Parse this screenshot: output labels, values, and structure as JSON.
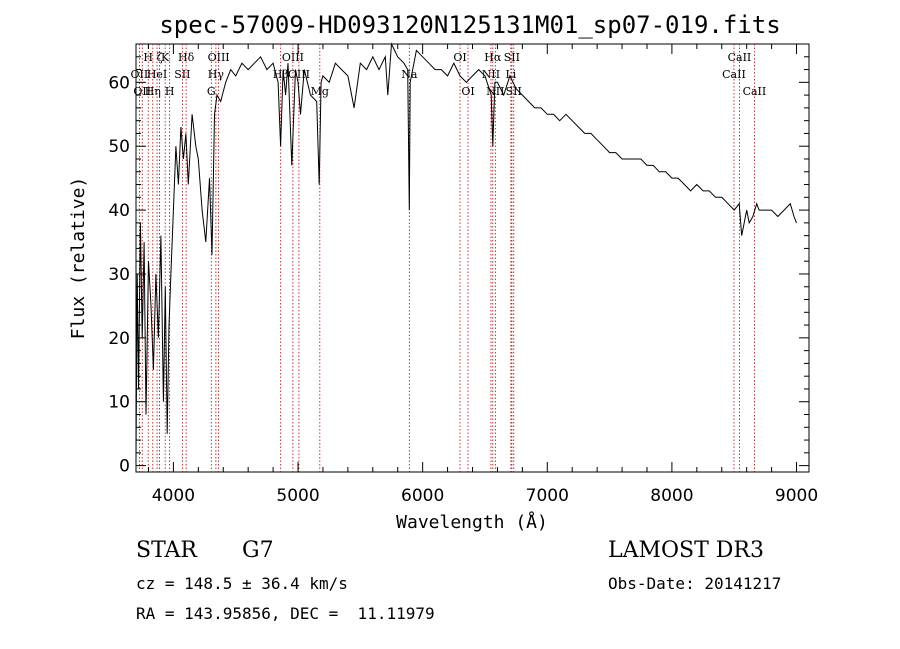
{
  "chart_data": {
    "type": "line",
    "title": "spec-57009-HD093120N125131M01_sp07-019.fits",
    "xlabel": "Wavelength (Å)",
    "ylabel": "Flux (relative)",
    "xlim": [
      3700,
      9100
    ],
    "ylim": [
      -1,
      66
    ],
    "xticks": [
      4000,
      5000,
      6000,
      7000,
      8000,
      9000
    ],
    "yticks": [
      0,
      10,
      20,
      30,
      40,
      50,
      60
    ],
    "grid": false,
    "series": [
      {
        "x": [
          3700,
          3710,
          3720,
          3735,
          3750,
          3765,
          3780,
          3800,
          3820,
          3840,
          3860,
          3880,
          3900,
          3920,
          3935,
          3950,
          3965,
          3980,
          4000,
          4020,
          4040,
          4060,
          4080,
          4100,
          4120,
          4150,
          4180,
          4200,
          4230,
          4260,
          4290,
          4310,
          4330,
          4350,
          4380,
          4420,
          4460,
          4500,
          4550,
          4600,
          4650,
          4700,
          4750,
          4800,
          4840,
          4860,
          4880,
          4900,
          4920,
          4950,
          4980,
          5000,
          5020,
          5050,
          5100,
          5150,
          5170,
          5185,
          5200,
          5250,
          5300,
          5350,
          5400,
          5450,
          5500,
          5550,
          5600,
          5650,
          5700,
          5720,
          5750,
          5800,
          5850,
          5880,
          5893,
          5900,
          5950,
          6000,
          6050,
          6100,
          6150,
          6200,
          6250,
          6300,
          6350,
          6400,
          6450,
          6500,
          6550,
          6563,
          6580,
          6600,
          6650,
          6700,
          6750,
          6800,
          6850,
          6900,
          6950,
          7000,
          7050,
          7100,
          7150,
          7200,
          7250,
          7300,
          7350,
          7400,
          7450,
          7500,
          7550,
          7600,
          7650,
          7700,
          7750,
          7800,
          7850,
          7900,
          7950,
          8000,
          8050,
          8100,
          8150,
          8200,
          8250,
          8300,
          8350,
          8400,
          8450,
          8500,
          8540,
          8560,
          8600,
          8620,
          8650,
          8680,
          8700,
          8750,
          8800,
          8850,
          8900,
          8950,
          8980,
          9000
        ],
        "y": [
          1,
          30,
          12,
          38,
          20,
          35,
          8,
          32,
          25,
          15,
          30,
          20,
          36,
          10,
          28,
          5,
          22,
          30,
          40,
          50,
          44,
          53,
          48,
          52,
          44,
          55,
          50,
          48,
          40,
          35,
          45,
          33,
          55,
          58,
          57,
          60,
          62,
          61,
          63,
          62,
          63,
          64,
          62,
          63,
          60,
          50,
          62,
          58,
          63,
          47,
          62,
          60,
          55,
          62,
          58,
          57,
          44,
          60,
          61,
          60,
          63,
          62,
          61,
          56,
          63,
          62,
          64,
          62,
          64,
          58,
          66,
          64,
          63,
          62,
          40,
          60,
          65,
          64,
          63,
          62,
          62,
          61,
          63,
          61,
          60,
          61,
          62,
          61,
          58,
          50,
          60,
          60,
          58,
          61,
          59,
          58,
          57,
          56,
          56,
          55,
          55,
          54,
          55,
          54,
          53,
          52,
          52,
          51,
          50,
          49,
          49,
          48,
          48,
          48,
          48,
          47,
          47,
          46,
          46,
          45,
          45,
          44,
          43,
          44,
          43,
          43,
          42,
          42,
          41,
          40,
          41,
          36,
          40,
          38,
          39,
          41,
          40,
          40,
          40,
          39,
          40,
          41,
          39,
          38
        ]
      }
    ],
    "lines": [
      {
        "x": 3727,
        "label": "OII",
        "row": 2
      },
      {
        "x": 3750,
        "label": "OII",
        "row": 3
      },
      {
        "x": 3798,
        "label": "H",
        "row": 1
      },
      {
        "x": 3835,
        "label": "Hη",
        "row": 3
      },
      {
        "x": 3869,
        "label": "HeI",
        "row": 2
      },
      {
        "x": 3889,
        "label": "ζ",
        "row": 1
      },
      {
        "x": 3934,
        "label": "K",
        "row": 1
      },
      {
        "x": 3970,
        "label": "H",
        "row": 3
      },
      {
        "x": 4072,
        "label": "SII",
        "row": 2
      },
      {
        "x": 4102,
        "label": "Hδ",
        "row": 1
      },
      {
        "x": 4304,
        "label": "G",
        "row": 3
      },
      {
        "x": 4341,
        "label": "Hγ",
        "row": 2
      },
      {
        "x": 4363,
        "label": "OIII",
        "row": 1
      },
      {
        "x": 4861,
        "label": "Hβ",
        "row": 2
      },
      {
        "x": 4959,
        "label": "OIII",
        "row": 1
      },
      {
        "x": 5007,
        "label": "OIII",
        "row": 2
      },
      {
        "x": 5175,
        "label": "Mg",
        "row": 3
      },
      {
        "x": 5893,
        "label": "Na",
        "row": 2
      },
      {
        "x": 6300,
        "label": "OI",
        "row": 1
      },
      {
        "x": 6364,
        "label": "OI",
        "row": 3
      },
      {
        "x": 6548,
        "label": "NII",
        "row": 2
      },
      {
        "x": 6563,
        "label": "Hα",
        "row": 1
      },
      {
        "x": 6583,
        "label": "NII",
        "row": 3
      },
      {
        "x": 6708,
        "label": "Li",
        "row": 2
      },
      {
        "x": 6716,
        "label": "SII",
        "row": 1
      },
      {
        "x": 6731,
        "label": "SII",
        "row": 3
      },
      {
        "x": 8498,
        "label": "CaII",
        "row": 2
      },
      {
        "x": 8542,
        "label": "CaII",
        "row": 1
      },
      {
        "x": 8662,
        "label": "CaII",
        "row": 3
      }
    ]
  },
  "info": {
    "object_class": "STAR",
    "subclass": "G7",
    "survey": "LAMOST DR3",
    "cz": "cz = 148.5 ± 36.4 km/s",
    "obs_date": "Obs-Date: 20141217",
    "radec": "RA = 143.95856, DEC =  11.11979"
  },
  "colors": {
    "spectrum": "#000000",
    "line_marker": "#b00000",
    "text": "#000000"
  }
}
